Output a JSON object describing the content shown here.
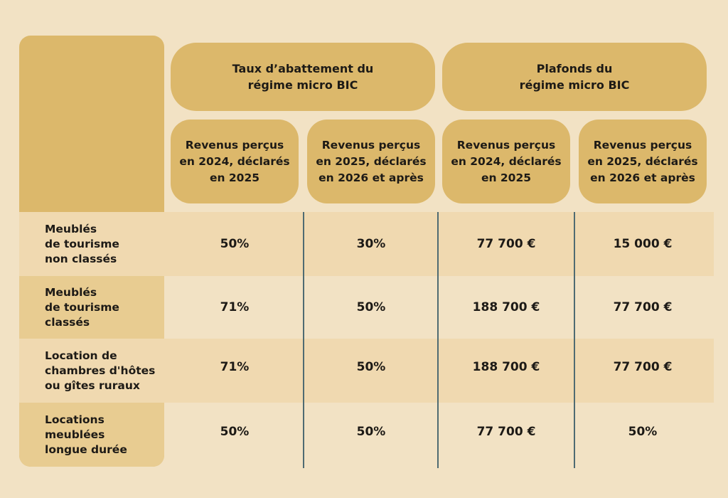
{
  "groups": [
    {
      "label": "Taux d’abattement du\nrégime micro BIC"
    },
    {
      "label": "Plafonds du\nrégime micro BIC"
    }
  ],
  "columns": [
    {
      "label": "Revenus perçus\nen 2024, déclarés\nen 2025"
    },
    {
      "label": "Revenus perçus\nen 2025, déclarés\nen 2026 et après"
    },
    {
      "label": "Revenus perçus\nen 2024, déclarés\nen 2025"
    },
    {
      "label": "Revenus perçus\nen 2025, déclarés\nen 2026 et après"
    }
  ],
  "rows": [
    {
      "label": "Meublés\nde tourisme\nnon classés",
      "values": [
        "50%",
        "30%",
        "77 700 €",
        "15 000 €"
      ]
    },
    {
      "label": "Meublés\nde tourisme\nclassés",
      "values": [
        "71%",
        "50%",
        "188 700 €",
        "77 700 €"
      ]
    },
    {
      "label": "Location de\nchambres d'hôtes\nou gîtes ruraux",
      "values": [
        "71%",
        "50%",
        "188 700 €",
        "77 700 €"
      ]
    },
    {
      "label": "Locations\nmeublées\nlongue durée",
      "values": [
        "50%",
        "50%",
        "77 700 €",
        "50%"
      ]
    }
  ]
}
